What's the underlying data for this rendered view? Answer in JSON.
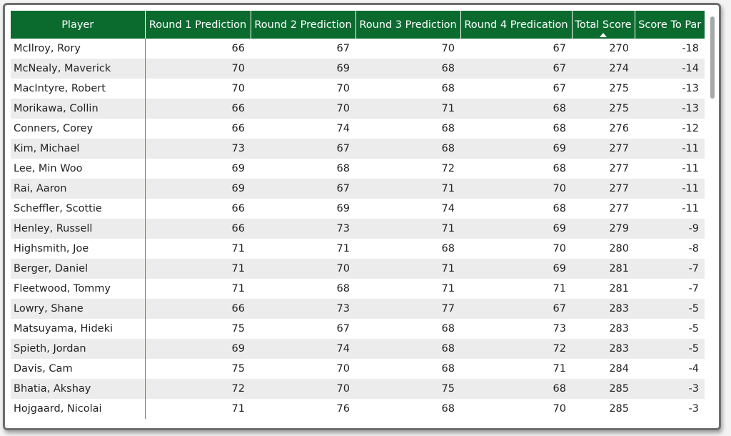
{
  "table": {
    "headers": [
      "Player",
      "Round 1 Prediction",
      "Round 2 Prediction",
      "Round 3 Prediction",
      "Round 4 Predication",
      "Total Score",
      "Score To Par"
    ],
    "rows": [
      [
        "McIlroy, Rory",
        "66",
        "67",
        "70",
        "67",
        "270",
        "-18"
      ],
      [
        "McNealy, Maverick",
        "70",
        "69",
        "68",
        "67",
        "274",
        "-14"
      ],
      [
        "MacIntyre, Robert",
        "70",
        "70",
        "68",
        "67",
        "275",
        "-13"
      ],
      [
        "Morikawa, Collin",
        "66",
        "70",
        "71",
        "68",
        "275",
        "-13"
      ],
      [
        "Conners, Corey",
        "66",
        "74",
        "68",
        "68",
        "276",
        "-12"
      ],
      [
        "Kim, Michael",
        "73",
        "67",
        "68",
        "69",
        "277",
        "-11"
      ],
      [
        "Lee, Min Woo",
        "69",
        "68",
        "72",
        "68",
        "277",
        "-11"
      ],
      [
        "Rai, Aaron",
        "69",
        "67",
        "71",
        "70",
        "277",
        "-11"
      ],
      [
        "Scheffler, Scottie",
        "66",
        "69",
        "74",
        "68",
        "277",
        "-11"
      ],
      [
        "Henley, Russell",
        "66",
        "73",
        "71",
        "69",
        "279",
        "-9"
      ],
      [
        "Highsmith, Joe",
        "71",
        "71",
        "68",
        "70",
        "280",
        "-8"
      ],
      [
        "Berger, Daniel",
        "71",
        "70",
        "71",
        "69",
        "281",
        "-7"
      ],
      [
        "Fleetwood, Tommy",
        "71",
        "68",
        "71",
        "71",
        "281",
        "-7"
      ],
      [
        "Lowry, Shane",
        "66",
        "73",
        "77",
        "67",
        "283",
        "-5"
      ],
      [
        "Matsuyama, Hideki",
        "75",
        "67",
        "68",
        "73",
        "283",
        "-5"
      ],
      [
        "Spieth, Jordan",
        "69",
        "74",
        "68",
        "72",
        "283",
        "-5"
      ],
      [
        "Davis, Cam",
        "75",
        "70",
        "68",
        "71",
        "284",
        "-4"
      ],
      [
        "Bhatia, Akshay",
        "72",
        "70",
        "75",
        "68",
        "285",
        "-3"
      ],
      [
        "Hojgaard, Nicolai",
        "71",
        "76",
        "68",
        "70",
        "285",
        "-3"
      ]
    ]
  },
  "sort": {
    "icon": "sort-ascending-icon"
  },
  "colors": {
    "header_bg": "#0b6b2f",
    "header_text": "#ffffff",
    "stripe": "#ececec",
    "divider": "#2f86d6"
  }
}
